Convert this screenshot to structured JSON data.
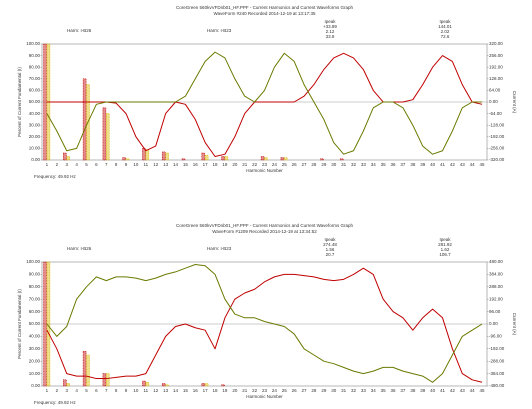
{
  "chart_data": [
    {
      "type": "bar_line",
      "title": "CoreGreen 560kvVFDnb01_HF.PPF - Current Harmonics and Current Waveforms Graph",
      "subtitle": "WaveForm #240 Recorded 2014-12-19 at 13:17:35",
      "x_label": "Harmonic Number",
      "y_label": "Percent of Current Fundamental (I)",
      "y2_label": "Current (A)",
      "footnote": "Frequency: 49.92 Hz",
      "annotations": [
        {
          "color": "#c00000",
          "lines": [
            "Ipeak",
            "+33.89",
            "2.12",
            "33.9"
          ]
        },
        {
          "color": "#6b7a00",
          "lines": [
            "Ipeak",
            "144.01",
            "2.02",
            "72.6"
          ]
        }
      ],
      "categories": [
        1,
        2,
        3,
        4,
        5,
        6,
        7,
        8,
        9,
        10,
        11,
        12,
        13,
        14,
        15,
        16,
        17,
        18,
        19,
        20,
        21,
        22,
        23,
        24,
        25,
        26,
        27,
        28,
        29,
        30,
        31,
        32,
        33,
        34,
        35,
        36,
        37,
        38,
        39,
        40,
        41,
        42,
        43,
        44,
        45
      ],
      "ylim": [
        0,
        100
      ],
      "yticks": [
        {
          "value": 0,
          "label": "0.00"
        },
        {
          "value": 10,
          "label": "10.00"
        },
        {
          "value": 20,
          "label": "20.00"
        },
        {
          "value": 30,
          "label": "30.00"
        },
        {
          "value": 40,
          "label": "40.00"
        },
        {
          "value": 50,
          "label": "50.00"
        },
        {
          "value": 60,
          "label": "60.00"
        },
        {
          "value": 70,
          "label": "70.00"
        },
        {
          "value": 80,
          "label": "80.00"
        },
        {
          "value": 90,
          "label": "90.00"
        },
        {
          "value": 100,
          "label": "100.00"
        }
      ],
      "y2lim": [
        -320,
        320
      ],
      "y2ticks": [
        {
          "value": -320,
          "label": "-320.00"
        },
        {
          "value": -256,
          "label": "-256.00"
        },
        {
          "value": -192,
          "label": "-192.00"
        },
        {
          "value": -128,
          "label": "-128.00"
        },
        {
          "value": -64,
          "label": "-64.00"
        },
        {
          "value": 0,
          "label": "0.00"
        },
        {
          "value": 64,
          "label": "64.00"
        },
        {
          "value": 128,
          "label": "128.00"
        },
        {
          "value": 192,
          "label": "192.00"
        },
        {
          "value": 256,
          "label": "256.00"
        },
        {
          "value": 320,
          "label": "320.00"
        }
      ],
      "series": [
        {
          "name": "Harm: I-B26",
          "color": "#c00000",
          "type": "bar",
          "values": [
            100,
            0,
            6,
            0,
            70,
            0,
            45,
            0,
            2,
            0,
            10,
            0,
            7,
            0,
            1,
            0,
            6,
            0,
            3,
            0,
            0,
            0,
            3,
            0,
            2,
            0,
            0,
            0,
            1,
            0,
            1,
            0,
            0,
            0,
            0,
            0,
            0,
            0,
            0,
            0,
            0,
            0,
            0,
            0,
            0
          ]
        },
        {
          "name": "Harm: I-B23",
          "color": "#d8b800",
          "type": "bar",
          "values": [
            100,
            0,
            3,
            0,
            65,
            0,
            40,
            0,
            1,
            0,
            9,
            0,
            6,
            0,
            0,
            0,
            4,
            0,
            3,
            0,
            0,
            0,
            2,
            0,
            2,
            0,
            0,
            0,
            0,
            0,
            0,
            0,
            0,
            0,
            0,
            0,
            0,
            0,
            0,
            0,
            0,
            0,
            0,
            0,
            0
          ]
        },
        {
          "color": "#c00000",
          "type": "line",
          "axis": "y2",
          "values": [
            0,
            0,
            0,
            0,
            0,
            0,
            0,
            -6.4,
            -64,
            -192,
            -268.8,
            -243.2,
            -64,
            0,
            -12.8,
            -96,
            -224,
            -300.8,
            -288,
            -192,
            -64,
            0,
            0,
            0,
            0,
            0,
            32,
            96,
            179.2,
            243.2,
            268.8,
            243.2,
            179.2,
            64,
            0,
            0,
            0,
            12.8,
            96,
            192,
            256,
            224,
            96,
            0,
            -12.8
          ]
        },
        {
          "color": "#6b7a00",
          "type": "line",
          "axis": "y2",
          "values": [
            -64,
            -160,
            -268.8,
            -256,
            -128,
            -12.8,
            0,
            0,
            0,
            0,
            0,
            0,
            0,
            0,
            32,
            128,
            224,
            275.2,
            243.2,
            128,
            32,
            0,
            64,
            192,
            268.8,
            224,
            96,
            0,
            -96,
            -224,
            -288,
            -268.8,
            -160,
            -32,
            0,
            0,
            -32,
            -128,
            -243.2,
            -288,
            -268.8,
            -160,
            -32,
            0,
            0
          ]
        }
      ]
    },
    {
      "type": "bar_line",
      "title": "CoreGreen 560kvVFDnb01_HF.PPF - Current Harmonics and Current Waveforms Graph",
      "subtitle": "WaveForm #1209 Recorded 2014-12-19 at 13:34:52",
      "x_label": "Harmonic Number",
      "y_label": "Percent of Current Fundamental (I)",
      "y2_label": "Current (A)",
      "footnote": "Frequency: 49.92 Hz",
      "annotations": [
        {
          "color": "#c00000",
          "lines": [
            "Ipeak",
            "274.48",
            "1.56",
            "20.7"
          ]
        },
        {
          "color": "#6b7a00",
          "lines": [
            "Ipeak",
            "281.92",
            "1.62",
            "106.7"
          ]
        }
      ],
      "categories": [
        1,
        2,
        3,
        4,
        5,
        6,
        7,
        8,
        9,
        10,
        11,
        12,
        13,
        14,
        15,
        16,
        17,
        18,
        19,
        20,
        21,
        22,
        23,
        24,
        25,
        26,
        27,
        28,
        29,
        30,
        31,
        32,
        33,
        34,
        35,
        36,
        37,
        38,
        39,
        40,
        41,
        42,
        43,
        44,
        45
      ],
      "ylim": [
        0,
        100
      ],
      "yticks": [
        {
          "value": 0,
          "label": "0.00"
        },
        {
          "value": 10,
          "label": "10.00"
        },
        {
          "value": 20,
          "label": "20.00"
        },
        {
          "value": 30,
          "label": "30.00"
        },
        {
          "value": 40,
          "label": "40.00"
        },
        {
          "value": 50,
          "label": "50.00"
        },
        {
          "value": 60,
          "label": "60.00"
        },
        {
          "value": 70,
          "label": "70.00"
        },
        {
          "value": 80,
          "label": "80.00"
        },
        {
          "value": 90,
          "label": "90.00"
        },
        {
          "value": 100,
          "label": "100.00"
        }
      ],
      "y2lim": [
        -480,
        480
      ],
      "y2ticks": [
        {
          "value": -480,
          "label": "-480.00"
        },
        {
          "value": -384,
          "label": "-384.00"
        },
        {
          "value": -288,
          "label": "-288.00"
        },
        {
          "value": -192,
          "label": "-192.00"
        },
        {
          "value": -96,
          "label": "-96.00"
        },
        {
          "value": 0,
          "label": "0.00"
        },
        {
          "value": 96,
          "label": "96.00"
        },
        {
          "value": 192,
          "label": "192.00"
        },
        {
          "value": 288,
          "label": "288.00"
        },
        {
          "value": 384,
          "label": "384.00"
        },
        {
          "value": 480,
          "label": "480.00"
        }
      ],
      "series": [
        {
          "name": "Harm: I-B26",
          "color": "#c00000",
          "type": "bar",
          "values": [
            100,
            0,
            5,
            0,
            28,
            0,
            10,
            0,
            0,
            0,
            4,
            0,
            2,
            0,
            0,
            0,
            2,
            0,
            1,
            0,
            0,
            0,
            0,
            0,
            0,
            0,
            0,
            0,
            0,
            0,
            0,
            0,
            0,
            0,
            0,
            0,
            0,
            0,
            0,
            0,
            0,
            0,
            0,
            0,
            0
          ]
        },
        {
          "name": "Harm: I-B23",
          "color": "#d8b800",
          "type": "bar",
          "values": [
            100,
            0,
            2,
            0,
            25,
            0,
            10,
            0,
            0,
            0,
            3,
            0,
            1,
            0,
            0,
            0,
            2,
            0,
            0,
            0,
            0,
            0,
            0,
            0,
            0,
            0,
            0,
            0,
            0,
            0,
            0,
            0,
            0,
            0,
            0,
            0,
            0,
            0,
            0,
            0,
            0,
            0,
            0,
            0,
            0
          ]
        },
        {
          "color": "#c00000",
          "type": "line",
          "axis": "y2",
          "values": [
            -48,
            -192,
            -384,
            -403.2,
            -403.2,
            -422.4,
            -422.4,
            -412.8,
            -403.2,
            -403.2,
            -384,
            -240,
            -96,
            -19.2,
            0,
            -28.8,
            -48,
            -192,
            48,
            192,
            240,
            268.8,
            326.4,
            364.8,
            384,
            384,
            374.4,
            364.8,
            345.6,
            336,
            345.6,
            384,
            432,
            384,
            192,
            96,
            48,
            -48,
            48,
            115.2,
            48,
            -192,
            -384,
            -432,
            -451.2
          ]
        },
        {
          "color": "#6b7a00",
          "type": "line",
          "axis": "y2",
          "values": [
            0,
            -96,
            -19.2,
            192,
            288,
            364.8,
            336,
            364.8,
            364.8,
            355.2,
            336,
            355.2,
            384,
            403.2,
            432,
            460.8,
            451.2,
            384,
            192,
            76.8,
            48,
            48,
            19.2,
            0,
            -19.2,
            -76.8,
            -192,
            -240,
            -288,
            -307.2,
            -336,
            -364.8,
            -384,
            -364.8,
            -336,
            -336,
            -364.8,
            -384,
            -403.2,
            -451.2,
            -384,
            -240,
            -96,
            -48,
            0
          ]
        }
      ]
    }
  ]
}
